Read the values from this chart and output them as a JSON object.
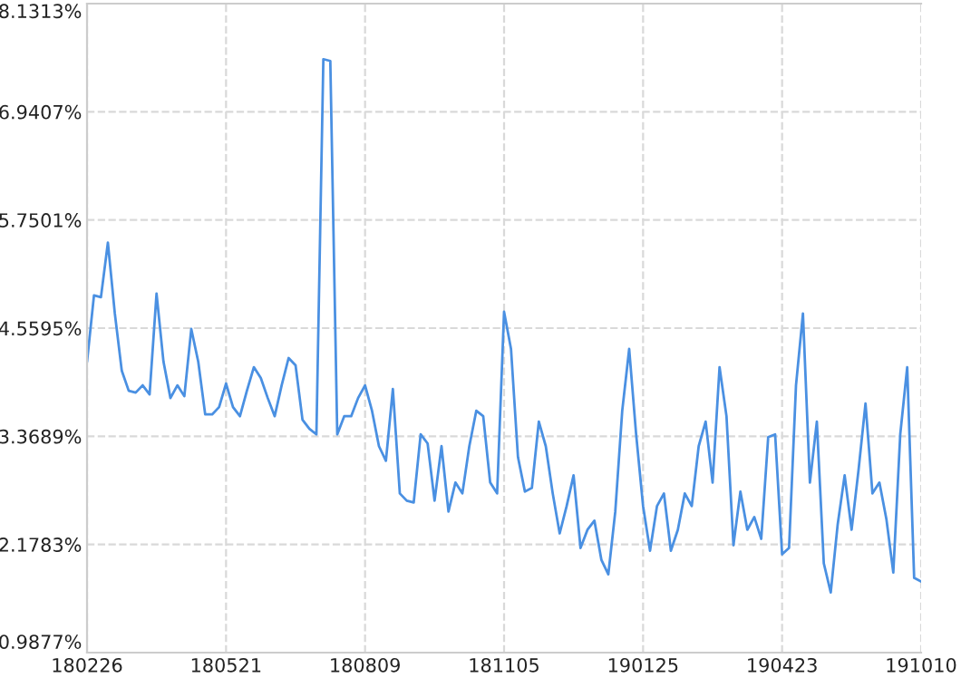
{
  "chart_data": {
    "type": "line",
    "categories": [
      "180226",
      null,
      null,
      null,
      null,
      null,
      null,
      null,
      null,
      null,
      null,
      null,
      null,
      null,
      null,
      null,
      null,
      null,
      null,
      null,
      "180521",
      null,
      null,
      null,
      null,
      null,
      null,
      null,
      null,
      null,
      null,
      null,
      null,
      null,
      null,
      null,
      null,
      null,
      null,
      null,
      "180809",
      null,
      null,
      null,
      null,
      null,
      null,
      null,
      null,
      null,
      null,
      null,
      null,
      null,
      null,
      null,
      null,
      null,
      null,
      null,
      "181105",
      null,
      null,
      null,
      null,
      null,
      null,
      null,
      null,
      null,
      null,
      null,
      null,
      null,
      null,
      null,
      null,
      null,
      null,
      null,
      "190125",
      null,
      null,
      null,
      null,
      null,
      null,
      null,
      null,
      null,
      null,
      null,
      null,
      null,
      null,
      null,
      null,
      null,
      null,
      null,
      "190423",
      null,
      null,
      null,
      null,
      null,
      null,
      null,
      null,
      null,
      null,
      null,
      null,
      null,
      null,
      null,
      null,
      null,
      null,
      null,
      "191010"
    ],
    "series": [
      {
        "color": "#4a90e2",
        "values": [
          4.19,
          4.92,
          4.9,
          5.5,
          4.72,
          4.09,
          3.87,
          3.85,
          3.93,
          3.83,
          4.94,
          4.19,
          3.79,
          3.93,
          3.81,
          4.55,
          4.19,
          3.61,
          3.61,
          3.69,
          3.95,
          3.69,
          3.59,
          3.87,
          4.13,
          4.01,
          3.79,
          3.59,
          3.93,
          4.23,
          4.15,
          3.55,
          3.45,
          3.39,
          7.52,
          7.5,
          3.39,
          3.59,
          3.59,
          3.79,
          3.93,
          3.65,
          3.26,
          3.1,
          3.89,
          2.74,
          2.66,
          2.64,
          3.39,
          3.29,
          2.66,
          3.26,
          2.54,
          2.86,
          2.74,
          3.26,
          3.65,
          3.59,
          2.86,
          2.74,
          4.74,
          4.33,
          3.14,
          2.76,
          2.8,
          3.53,
          3.26,
          2.74,
          2.3,
          2.6,
          2.94,
          2.14,
          2.34,
          2.44,
          2.01,
          1.85,
          2.54,
          3.65,
          4.33,
          3.39,
          2.6,
          2.11,
          2.6,
          2.74,
          2.11,
          2.34,
          2.74,
          2.6,
          3.26,
          3.53,
          2.86,
          4.13,
          3.59,
          2.17,
          2.76,
          2.34,
          2.48,
          2.24,
          3.36,
          3.39,
          2.07,
          2.14,
          3.93,
          4.72,
          2.86,
          3.53,
          1.97,
          1.65,
          2.4,
          2.94,
          2.34,
          3.0,
          3.73,
          2.74,
          2.86,
          2.46,
          1.87,
          3.39,
          4.13,
          1.81,
          1.77
        ]
      }
    ],
    "ylim": [
      0.9877,
      8.1313
    ],
    "yticks": [
      {
        "value": 0.9877,
        "label": "0.9877%"
      },
      {
        "value": 2.1783,
        "label": "2.1783%"
      },
      {
        "value": 3.3689,
        "label": "3.3689%"
      },
      {
        "value": 4.5595,
        "label": "4.5595%"
      },
      {
        "value": 5.7501,
        "label": "5.7501%"
      },
      {
        "value": 6.9407,
        "label": "6.9407%"
      },
      {
        "value": 8.1313,
        "label": "8.1313%"
      }
    ],
    "grid": true,
    "line_style": "solid"
  }
}
